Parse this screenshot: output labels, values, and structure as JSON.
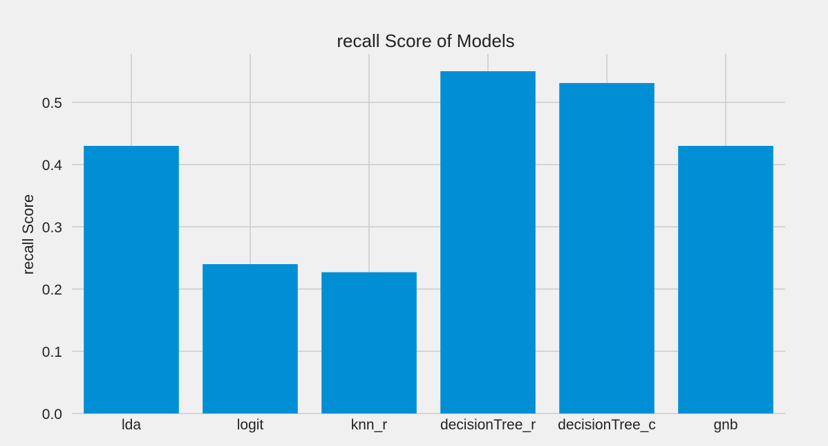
{
  "chart_data": {
    "type": "bar",
    "title": "recall Score of Models",
    "xlabel": "",
    "ylabel": "recall Score",
    "categories": [
      "lda",
      "logit",
      "knn_r",
      "decisionTree_r",
      "decisionTree_c",
      "gnb"
    ],
    "values": [
      0.43,
      0.24,
      0.227,
      0.55,
      0.531,
      0.43
    ],
    "ylim": [
      0,
      0.58
    ],
    "yticks": [
      0.0,
      0.1,
      0.2,
      0.3,
      0.4,
      0.5
    ],
    "ytick_labels": [
      "0.0",
      "0.1",
      "0.2",
      "0.3",
      "0.4",
      "0.5"
    ],
    "grid": true,
    "bar_color": "#008fd5",
    "background": "#f0f0f0",
    "grid_color": "#cbcbcb"
  }
}
